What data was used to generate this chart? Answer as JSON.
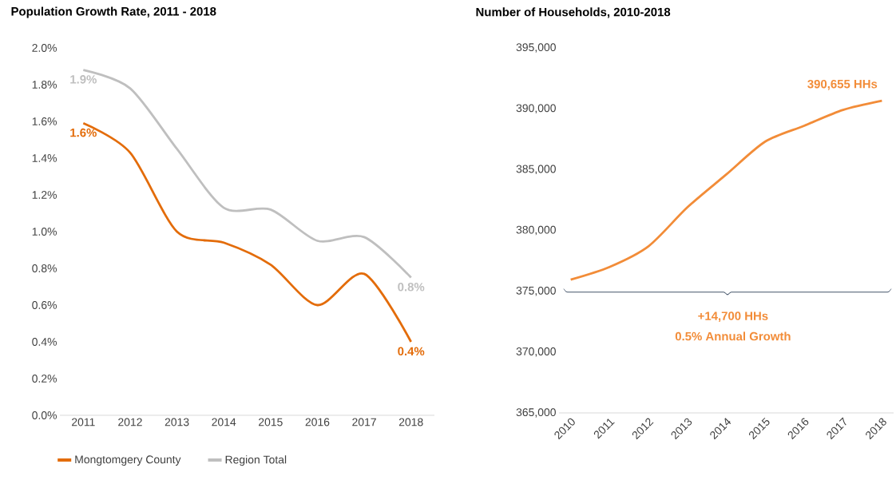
{
  "chart_data": [
    {
      "type": "line",
      "title": "Population Growth Rate, 2011 - 2018",
      "categories": [
        "2011",
        "2012",
        "2013",
        "2014",
        "2015",
        "2016",
        "2017",
        "2018"
      ],
      "series": [
        {
          "name": "Mongtomgery County",
          "color": "#e36c0a",
          "values": [
            1.59,
            1.43,
            1.0,
            0.94,
            0.82,
            0.6,
            0.77,
            0.4
          ],
          "value_labels": [
            "1.6%",
            null,
            null,
            null,
            null,
            null,
            null,
            "0.4%"
          ]
        },
        {
          "name": "Region Total",
          "color": "#bfbfbf",
          "values": [
            1.88,
            1.78,
            1.45,
            1.13,
            1.12,
            0.95,
            0.97,
            0.75
          ],
          "value_labels": [
            "1.9%",
            null,
            null,
            null,
            null,
            null,
            null,
            "0.8%"
          ]
        }
      ],
      "ylim": [
        0,
        2.0
      ],
      "yticks": [
        {
          "value": 0,
          "label": "0.0%"
        },
        {
          "value": 0.2,
          "label": "0.2%"
        },
        {
          "value": 0.4,
          "label": "0.4%"
        },
        {
          "value": 0.6,
          "label": "0.6%"
        },
        {
          "value": 0.8,
          "label": "0.8%"
        },
        {
          "value": 1.0,
          "label": "1.0%"
        },
        {
          "value": 1.2,
          "label": "1.2%"
        },
        {
          "value": 1.4,
          "label": "1.4%"
        },
        {
          "value": 1.6,
          "label": "1.6%"
        },
        {
          "value": 1.8,
          "label": "1.8%"
        },
        {
          "value": 2.0,
          "label": "2.0%"
        }
      ],
      "legend": "bottom"
    },
    {
      "type": "line",
      "title": "Number of Households, 2010-2018",
      "categories": [
        "2010",
        "2011",
        "2012",
        "2013",
        "2014",
        "2015",
        "2016",
        "2017",
        "2018"
      ],
      "series": [
        {
          "color": "#f28c38",
          "values": [
            375955,
            377000,
            378700,
            381900,
            384600,
            387300,
            388600,
            389900,
            390655
          ],
          "value_labels": [
            null,
            null,
            null,
            null,
            null,
            null,
            null,
            null,
            "390,655 HHs"
          ]
        }
      ],
      "ylim": [
        365000,
        395000
      ],
      "yticks": [
        {
          "value": 365000,
          "label": "365,000"
        },
        {
          "value": 370000,
          "label": "370,000"
        },
        {
          "value": 375000,
          "label": "375,000"
        },
        {
          "value": 380000,
          "label": "380,000"
        },
        {
          "value": 385000,
          "label": "385,000"
        },
        {
          "value": 390000,
          "label": "390,000"
        },
        {
          "value": 395000,
          "label": "395,000"
        }
      ],
      "annotations": [
        "+14,700 HHs",
        "0.5% Annual Growth"
      ]
    }
  ]
}
